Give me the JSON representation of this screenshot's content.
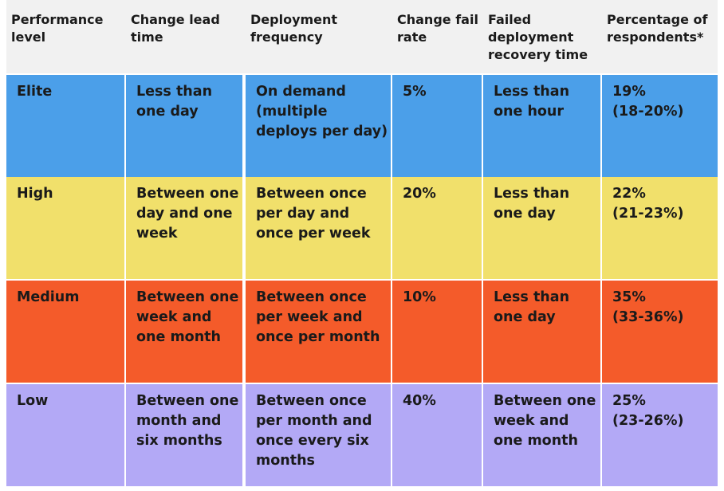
{
  "table": {
    "header": [
      [
        "Performance",
        "level"
      ],
      [
        "Change lead",
        "time"
      ],
      [
        "Deployment",
        "frequency"
      ],
      [
        "Change fail",
        "rate"
      ],
      [
        "Failed",
        "deployment",
        "recovery time"
      ],
      [
        "Percentage of",
        "respondents*"
      ]
    ],
    "rows": [
      [
        [
          "Elite"
        ],
        [
          "Less than",
          "one day"
        ],
        [
          "On demand",
          "(multiple",
          "deploys per day)"
        ],
        [
          "5%"
        ],
        [
          "Less than",
          "one hour"
        ],
        [
          "19%",
          "(18-20%)"
        ]
      ],
      [
        [
          "High"
        ],
        [
          "Between one",
          "day and one",
          "week"
        ],
        [
          "Between once",
          "per day and",
          "once per week"
        ],
        [
          "20%"
        ],
        [
          "Less than",
          "one day"
        ],
        [
          "22%",
          "(21-23%)"
        ]
      ],
      [
        [
          "Medium"
        ],
        [
          "Between one",
          "week and",
          "one month"
        ],
        [
          "Between once",
          "per week and",
          "once per month"
        ],
        [
          "10%"
        ],
        [
          "Less than",
          "one day"
        ],
        [
          "35%",
          "(33-36%)"
        ]
      ],
      [
        [
          "Low"
        ],
        [
          "Between one",
          "month and",
          "six months"
        ],
        [
          "Between once",
          "per month and",
          "once every six",
          "months"
        ],
        [
          "40%"
        ],
        [
          "Between one",
          "week and",
          "one month"
        ],
        [
          "25%",
          "(23-26%)"
        ]
      ]
    ]
  }
}
